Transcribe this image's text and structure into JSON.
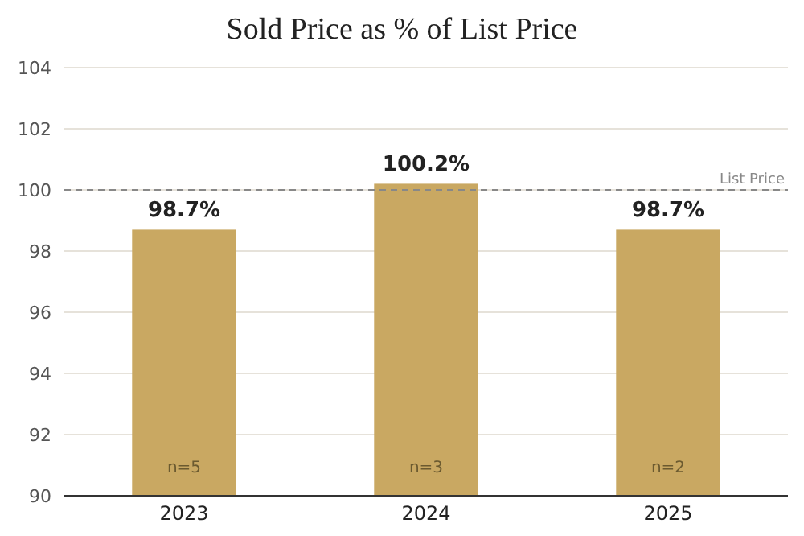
{
  "chart_data": {
    "type": "bar",
    "title": "Sold Price as % of List Price",
    "categories": [
      "2023",
      "2024",
      "2025"
    ],
    "values": [
      98.7,
      100.2,
      98.7
    ],
    "value_labels": [
      "98.7%",
      "100.2%",
      "98.7%"
    ],
    "color": "#c9a862",
    "ylim": [
      90,
      104
    ],
    "yticks": [
      90,
      92,
      94,
      96,
      98,
      100,
      102,
      104
    ],
    "grid": "y",
    "ref_lines": [
      {
        "axis": "y",
        "value": 100,
        "label": "List Price",
        "color": "#888888",
        "line_style": "dashed"
      }
    ],
    "annotations": [
      "n=5",
      "n=3",
      "n=2"
    ]
  }
}
